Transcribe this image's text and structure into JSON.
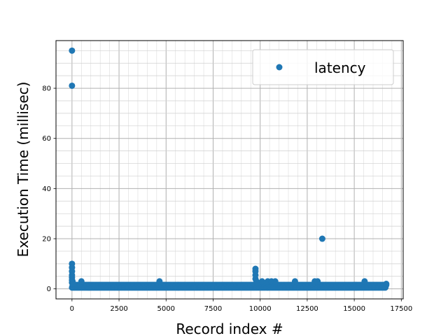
{
  "chart_data": {
    "type": "scatter",
    "xlabel": "Record index #",
    "ylabel": "Execution Time (millisec)",
    "xlim": [
      -850,
      17600
    ],
    "ylim": [
      -4,
      99
    ],
    "xticks": [
      0,
      2500,
      5000,
      7500,
      10000,
      12500,
      15000,
      17500
    ],
    "xtick_labels": [
      "0",
      "2500",
      "5000",
      "7500",
      "10000",
      "12500",
      "15000",
      "17500"
    ],
    "yticks": [
      0,
      20,
      40,
      60,
      80
    ],
    "ytick_labels": [
      "0",
      "20",
      "40",
      "60",
      "80"
    ],
    "grid": true,
    "legend_position": "top-right",
    "series": [
      {
        "name": "latency",
        "color": "#1f77b4",
        "baseline": {
          "x_start": 0,
          "x_end": 16700,
          "y_min": 0.5,
          "y_max": 1.6
        },
        "points": [
          {
            "x": 0,
            "y": 95
          },
          {
            "x": 0,
            "y": 81
          },
          {
            "x": 0,
            "y": 10
          },
          {
            "x": 0,
            "y": 8.5
          },
          {
            "x": 0,
            "y": 7
          },
          {
            "x": 0,
            "y": 5.5
          },
          {
            "x": 0,
            "y": 4.5
          },
          {
            "x": 0,
            "y": 3.5
          },
          {
            "x": 0,
            "y": 2.5
          },
          {
            "x": 30,
            "y": 3
          },
          {
            "x": 50,
            "y": 2
          },
          {
            "x": 500,
            "y": 3
          },
          {
            "x": 4650,
            "y": 3
          },
          {
            "x": 9750,
            "y": 8
          },
          {
            "x": 9750,
            "y": 7
          },
          {
            "x": 9750,
            "y": 5.5
          },
          {
            "x": 9750,
            "y": 4
          },
          {
            "x": 9800,
            "y": 3
          },
          {
            "x": 9850,
            "y": 2.5
          },
          {
            "x": 10100,
            "y": 3
          },
          {
            "x": 10400,
            "y": 3
          },
          {
            "x": 10600,
            "y": 3
          },
          {
            "x": 10800,
            "y": 3
          },
          {
            "x": 11850,
            "y": 3
          },
          {
            "x": 12900,
            "y": 3
          },
          {
            "x": 13050,
            "y": 3
          },
          {
            "x": 13300,
            "y": 20
          },
          {
            "x": 15550,
            "y": 3
          },
          {
            "x": 16700,
            "y": 2
          }
        ]
      }
    ]
  }
}
